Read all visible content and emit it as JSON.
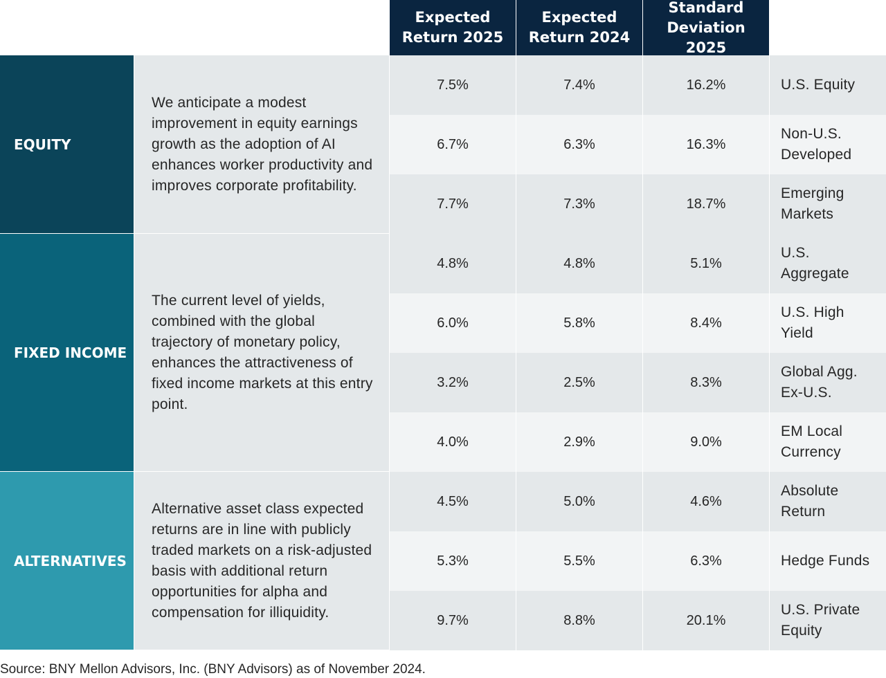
{
  "headers": [
    "Expected\nReturn 2025",
    "Expected\nReturn 2024",
    "Standard\nDeviation 2025"
  ],
  "groups": [
    {
      "name": "EQUITY",
      "color": "#0b4459",
      "description": "We anticipate a modest improvement in equity earnings growth as the adoption of AI enhances worker productivity and improves corporate profitability.",
      "rows": [
        {
          "values": [
            "7.5%",
            "7.4%",
            "16.2%"
          ],
          "label": "U.S. Equity"
        },
        {
          "values": [
            "6.7%",
            "6.3%",
            "16.3%"
          ],
          "label": "Non-U.S. Developed"
        },
        {
          "values": [
            "7.7%",
            "7.3%",
            "18.7%"
          ],
          "label": "Emerging Markets"
        }
      ]
    },
    {
      "name": "FIXED INCOME",
      "color": "#0a637a",
      "description": "The current level of yields, combined with the global trajectory of monetary policy, enhances the attractiveness of fixed income markets at this entry point.",
      "rows": [
        {
          "values": [
            "4.8%",
            "4.8%",
            "5.1%"
          ],
          "label": "U.S. Aggregate"
        },
        {
          "values": [
            "6.0%",
            "5.8%",
            "8.4%"
          ],
          "label": "U.S. High Yield"
        },
        {
          "values": [
            "3.2%",
            "2.5%",
            "8.3%"
          ],
          "label": "Global Agg. Ex-U.S."
        },
        {
          "values": [
            "4.0%",
            "2.9%",
            "9.0%"
          ],
          "label": "EM Local Currency"
        }
      ]
    },
    {
      "name": "ALTERNATIVES",
      "color": "#2e9aae",
      "description": "Alternative asset class expected returns are in line with publicly traded markets on a risk-adjusted basis with additional return opportunities for alpha and compensation for illiquidity.",
      "rows": [
        {
          "values": [
            "4.5%",
            "5.0%",
            "4.6%"
          ],
          "label": "Absolute Return"
        },
        {
          "values": [
            "5.3%",
            "5.5%",
            "6.3%"
          ],
          "label": "Hedge Funds"
        },
        {
          "values": [
            "9.7%",
            "8.8%",
            "20.1%"
          ],
          "label": "U.S. Private Equity"
        }
      ]
    }
  ],
  "source": "Source: BNY Mellon Advisors, Inc. (BNY Advisors) as of November 2024."
}
